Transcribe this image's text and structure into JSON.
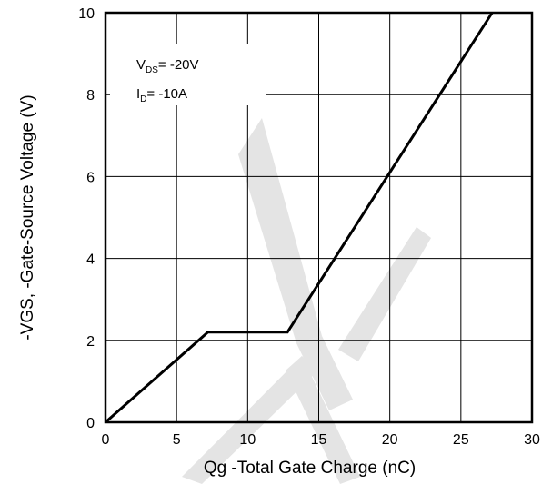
{
  "chart_data": {
    "type": "line",
    "xlabel": "Qg -Total Gate Charge (nC)",
    "ylabel": "-VGS, -Gate-Source Voltage (V)",
    "xlim": [
      0,
      30
    ],
    "ylim": [
      0,
      10
    ],
    "x_ticks": [
      0,
      5,
      10,
      15,
      20,
      25,
      30
    ],
    "y_ticks": [
      0,
      2,
      4,
      6,
      8,
      10
    ],
    "grid": true,
    "series": [
      {
        "x": [
          0,
          7.2,
          12.8,
          27.2
        ],
        "y": [
          0,
          2.2,
          2.2,
          10
        ]
      }
    ],
    "annotations": [
      {
        "main": "V",
        "sub": "DS",
        "rest": "= -20V"
      },
      {
        "main": "I",
        "sub": "D",
        "rest": "= -10A"
      }
    ]
  },
  "colors": {
    "line": "#000000",
    "grid": "#000000",
    "watermark": "#e4e4e4"
  }
}
